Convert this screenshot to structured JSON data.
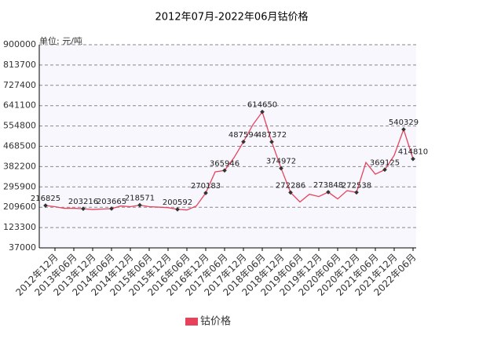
{
  "chart_data": {
    "type": "line",
    "title": "2012年07月-2022年06月钴价格",
    "y_label": "单位: 元/吨",
    "categories": [
      null,
      "2012年12月",
      null,
      "2013年06月",
      null,
      "2013年12月",
      null,
      "2014年06月",
      null,
      "2014年12月",
      null,
      "2015年06月",
      null,
      "2015年12月",
      null,
      "2016年06月",
      null,
      "2016年12月",
      null,
      "2017年06月",
      null,
      "2017年12月",
      null,
      "2018年06月",
      null,
      "2018年12月",
      null,
      "2019年06月",
      null,
      "2019年12月",
      null,
      "2020年06月",
      null,
      "2020年12月",
      null,
      "2021年06月",
      null,
      "2021年12月",
      null,
      "2022年06月"
    ],
    "series": [
      {
        "name": "钴价格",
        "color": "#e8425a",
        "values": [
          216825,
          212000,
          205000,
          205000,
          203216,
          200000,
          202000,
          203665,
          215000,
          212000,
          218571,
          212000,
          210000,
          208000,
          200592,
          198000,
          215000,
          270183,
          360000,
          365946,
          420000,
          487594,
          560000,
          614650,
          487372,
          374972,
          272286,
          232000,
          265000,
          255000,
          273848,
          245000,
          280000,
          272538,
          400000,
          350000,
          369125,
          430000,
          540329,
          414810
        ],
        "value_labels": [
          "216825",
          null,
          null,
          null,
          "203216",
          null,
          null,
          "203665",
          null,
          null,
          "218571",
          null,
          null,
          null,
          "200592",
          null,
          null,
          "270183",
          null,
          "365946",
          null,
          "487594",
          null,
          "614650",
          "487372",
          "374972",
          "272286",
          null,
          null,
          null,
          "273848",
          null,
          null,
          "272538",
          null,
          null,
          "369125",
          null,
          "540329",
          "414810"
        ]
      }
    ],
    "ylim": [
      37000,
      900000
    ],
    "yticks": [
      37000,
      123300,
      209600,
      295900,
      382200,
      468500,
      554800,
      641100,
      727400,
      813700,
      900000
    ],
    "grid": true
  }
}
